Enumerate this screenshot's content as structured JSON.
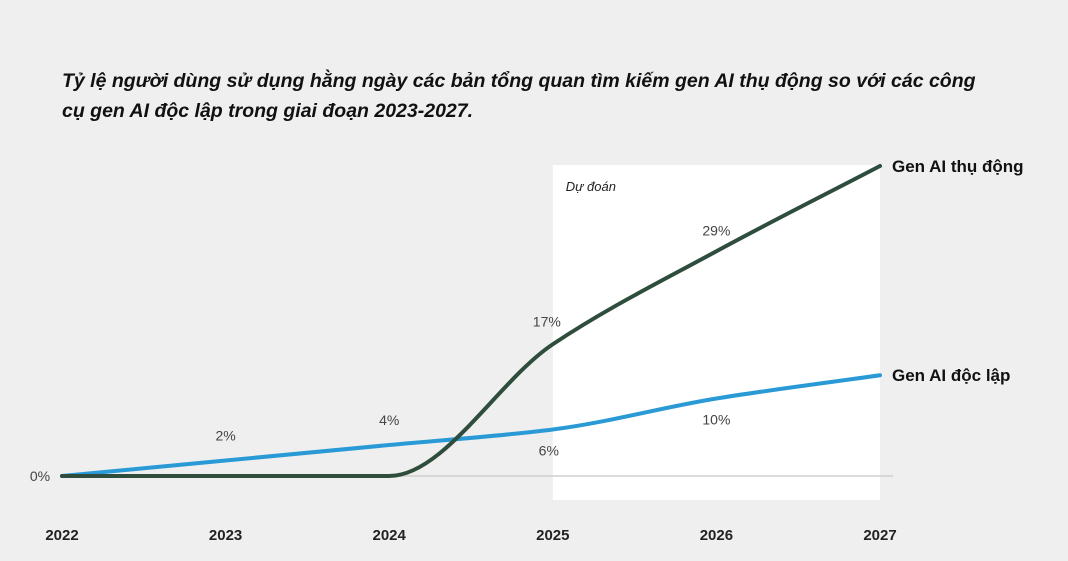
{
  "chart_data": {
    "type": "line",
    "title": "Tỷ lệ người dùng sử dụng hằng ngày các bản tổng quan tìm kiếm gen AI thụ động so với các công cụ gen AI độc lập trong giai đoạn 2023-2027.",
    "xlabel": "",
    "ylabel": "",
    "x": [
      2022,
      2023,
      2024,
      2025,
      2026,
      2027
    ],
    "x_tick_labels": [
      "2022",
      "2023",
      "2024",
      "2025",
      "2026",
      "2027"
    ],
    "ylim": [
      0,
      42
    ],
    "grid": false,
    "forecast_region": {
      "label": "Dự đoán",
      "from": 2025,
      "to": 2027
    },
    "series": [
      {
        "name": "Gen AI thụ động",
        "color": "#2e4d3c",
        "values": [
          0,
          0,
          0,
          17,
          29,
          40
        ],
        "data_labels": [
          null,
          null,
          null,
          "17%",
          "29%",
          null
        ]
      },
      {
        "name": "Gen AI độc lập",
        "color": "#2a9ad6",
        "values": [
          0,
          2,
          4,
          6,
          10,
          13
        ],
        "data_labels": [
          "0%",
          "2%",
          "4%",
          "6%",
          "10%",
          null
        ]
      }
    ]
  }
}
